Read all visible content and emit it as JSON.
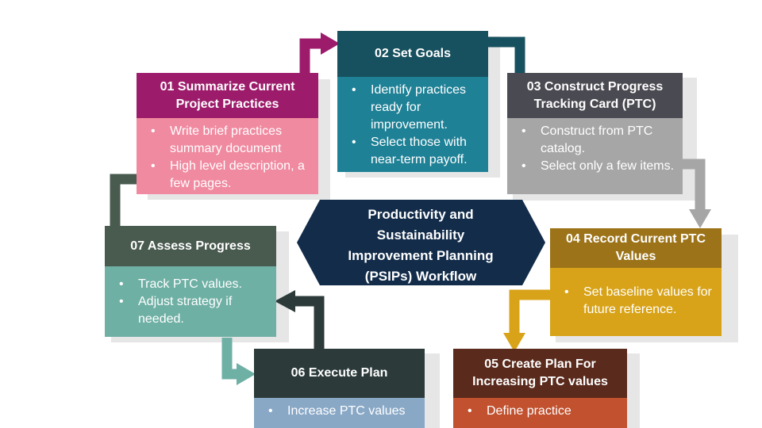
{
  "center": {
    "lines": [
      "Productivity and",
      "Sustainability",
      "Improvement Planning",
      "(PSIPs) Workflow"
    ]
  },
  "steps": [
    {
      "title": "01 Summarize Current Project Practices",
      "bullets": [
        "Write brief practices summary document",
        "High level description, a few pages."
      ]
    },
    {
      "title": "02 Set Goals",
      "bullets": [
        "Identify practices ready for improvement.",
        "Select those with near-term payoff."
      ]
    },
    {
      "title": "03 Construct Progress Tracking Card (PTC)",
      "bullets": [
        "Construct from PTC catalog.",
        "Select only a few items."
      ]
    },
    {
      "title": "04 Record Current PTC Values",
      "bullets": [
        "Set baseline values for future reference."
      ]
    },
    {
      "title": "05 Create Plan For Increasing PTC values",
      "bullets": [
        "Define practice"
      ]
    },
    {
      "title": "06 Execute Plan",
      "bullets": [
        "Increase PTC values"
      ]
    },
    {
      "title": "07 Assess Progress",
      "bullets": [
        "Track PTC values.",
        "Adjust strategy if needed."
      ]
    }
  ],
  "colors": {
    "step01_header": "#9c1c6b",
    "step01_body": "#f08aa0",
    "step02_header": "#17505e",
    "step02_body": "#1f8196",
    "step03_header": "#4a4a52",
    "step03_body": "#a6a6a6",
    "step04_header": "#9c7318",
    "step04_body": "#d8a318",
    "step05_header": "#5a2a1c",
    "step05_body": "#c1512f",
    "step06_header": "#2c3a3a",
    "step06_body": "#89a8c6",
    "step07_header": "#495a4f",
    "step07_body": "#6fb0a5",
    "center_hex": "#122c4a"
  }
}
